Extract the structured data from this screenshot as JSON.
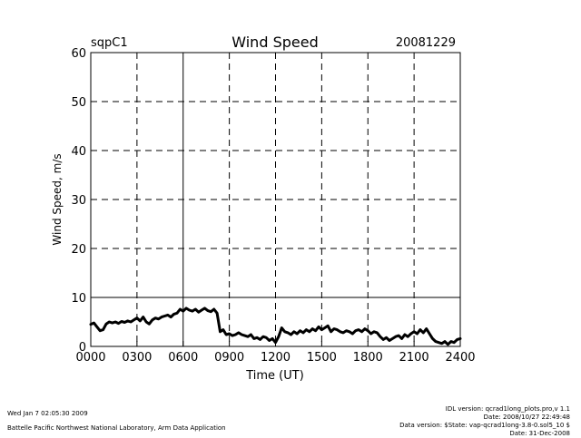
{
  "header": {
    "site": "sqpC1",
    "date": "20081229"
  },
  "footer": {
    "left": {
      "timestamp": "Wed Jan  7 02:05:30 2009",
      "organization": "Battelle Pacific Northwest National Laboratory, Arm Data Application"
    },
    "right": {
      "idl_version": "IDL version: qcrad1long_plots.pro,v 1.1",
      "idl_date": "Date: 2008/10/27 22:49:48",
      "data_version": "Data version: $State: vap-qcrad1long-3.8-0.sol5_10 $",
      "data_date": "Date: 31-Dec-2008"
    }
  },
  "chart_data": {
    "type": "line",
    "title": "Wind Speed",
    "xlabel": "Time (UT)",
    "ylabel": "Wind Speed, m/s",
    "xlim": [
      0,
      24
    ],
    "ylim": [
      0,
      60
    ],
    "xticks": [
      {
        "value": 0,
        "label": "0000"
      },
      {
        "value": 3,
        "label": "0300"
      },
      {
        "value": 6,
        "label": "0600"
      },
      {
        "value": 9,
        "label": "0900"
      },
      {
        "value": 12,
        "label": "1200"
      },
      {
        "value": 15,
        "label": "1500"
      },
      {
        "value": 18,
        "label": "1800"
      },
      {
        "value": 21,
        "label": "2100"
      },
      {
        "value": 24,
        "label": "2400"
      }
    ],
    "yticks": [
      {
        "value": 0,
        "label": "0"
      },
      {
        "value": 10,
        "label": "10"
      },
      {
        "value": 20,
        "label": "20"
      },
      {
        "value": 30,
        "label": "30"
      },
      {
        "value": 40,
        "label": "40"
      },
      {
        "value": 50,
        "label": "50"
      },
      {
        "value": 60,
        "label": "60"
      }
    ],
    "grid": true,
    "reference_lines": {
      "horizontal": [
        10
      ],
      "vertical": [
        6
      ]
    },
    "series": [
      {
        "name": "",
        "x": [
          0.0,
          0.2,
          0.4,
          0.6,
          0.8,
          1.0,
          1.2,
          1.4,
          1.6,
          1.8,
          2.0,
          2.2,
          2.4,
          2.6,
          2.8,
          3.0,
          3.2,
          3.4,
          3.6,
          3.8,
          4.0,
          4.2,
          4.4,
          4.6,
          4.8,
          5.0,
          5.2,
          5.4,
          5.6,
          5.8,
          6.0,
          6.2,
          6.4,
          6.6,
          6.8,
          7.0,
          7.2,
          7.4,
          7.6,
          7.8,
          8.0,
          8.2,
          8.4,
          8.6,
          8.8,
          9.0,
          9.2,
          9.4,
          9.6,
          9.8,
          10.0,
          10.2,
          10.4,
          10.6,
          10.8,
          11.0,
          11.2,
          11.4,
          11.6,
          11.8,
          12.0,
          12.2,
          12.4,
          12.6,
          12.8,
          13.0,
          13.2,
          13.4,
          13.6,
          13.8,
          14.0,
          14.2,
          14.4,
          14.6,
          14.8,
          15.0,
          15.2,
          15.4,
          15.6,
          15.8,
          16.0,
          16.2,
          16.4,
          16.6,
          16.8,
          17.0,
          17.2,
          17.4,
          17.6,
          17.8,
          18.0,
          18.2,
          18.4,
          18.6,
          18.8,
          19.0,
          19.2,
          19.4,
          19.6,
          19.8,
          20.0,
          20.2,
          20.4,
          20.6,
          20.8,
          21.0,
          21.2,
          21.4,
          21.6,
          21.8,
          22.0,
          22.2,
          22.4,
          22.6,
          22.8,
          23.0,
          23.2,
          23.4,
          23.6,
          23.8,
          24.0
        ],
        "values": [
          4.5,
          4.8,
          4.0,
          3.2,
          3.4,
          4.6,
          5.0,
          4.8,
          5.0,
          4.7,
          5.1,
          4.9,
          5.2,
          5.0,
          5.4,
          5.8,
          5.2,
          6.0,
          5.0,
          4.6,
          5.4,
          5.8,
          5.6,
          6.0,
          6.2,
          6.4,
          6.0,
          6.6,
          6.8,
          7.6,
          7.2,
          7.8,
          7.4,
          7.2,
          7.6,
          7.0,
          7.4,
          7.8,
          7.3,
          7.1,
          7.6,
          6.8,
          3.0,
          3.4,
          2.4,
          2.6,
          2.2,
          2.4,
          2.8,
          2.4,
          2.2,
          2.0,
          2.4,
          1.6,
          1.8,
          1.4,
          2.0,
          1.8,
          1.2,
          1.6,
          0.8,
          2.0,
          3.8,
          3.0,
          2.8,
          2.4,
          3.0,
          2.6,
          3.2,
          2.8,
          3.4,
          3.0,
          3.6,
          3.2,
          4.0,
          3.4,
          3.8,
          4.2,
          3.0,
          3.6,
          3.4,
          3.0,
          2.8,
          3.2,
          3.0,
          2.6,
          3.2,
          3.4,
          3.0,
          3.6,
          3.2,
          2.6,
          3.0,
          2.8,
          2.0,
          1.4,
          1.8,
          1.2,
          1.6,
          2.0,
          2.2,
          1.6,
          2.4,
          2.0,
          2.6,
          3.0,
          2.6,
          3.4,
          2.8,
          3.6,
          2.6,
          1.6,
          1.0,
          0.8,
          0.6,
          1.0,
          0.4,
          1.0,
          0.8,
          1.4,
          1.6
        ]
      }
    ]
  }
}
